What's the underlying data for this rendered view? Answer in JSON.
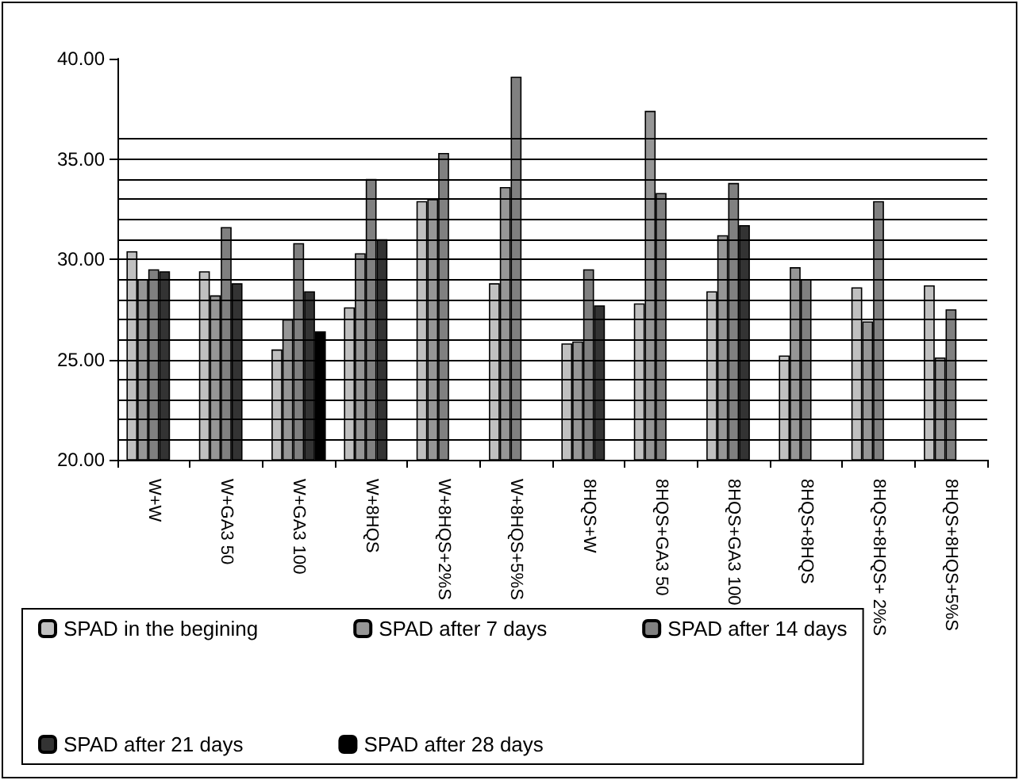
{
  "chart_data": {
    "type": "bar",
    "categories": [
      "W+W",
      "W+GA3 50",
      "W+GA3 100",
      "W+8HQS",
      "W+8HQS+2%S",
      "W+8HQS+5%S",
      "8HQS+W",
      "8HQS+GA3 50",
      "8HQS+GA3 100",
      "8HQS+8HQS",
      "8HQS+8HQS+ 2%S",
      "8HQS+8HQS+5%S"
    ],
    "series": [
      {
        "name": "SPAD in the begining",
        "color": "#c0c0c0",
        "values": [
          30.4,
          29.4,
          25.5,
          27.6,
          32.9,
          28.8,
          25.8,
          27.8,
          28.4,
          25.2,
          28.6,
          28.7
        ]
      },
      {
        "name": "SPAD after 7 days",
        "color": "#969696",
        "values": [
          29.0,
          28.2,
          27.0,
          30.3,
          33.0,
          33.6,
          25.9,
          37.4,
          31.2,
          29.6,
          26.9,
          25.1
        ]
      },
      {
        "name": "SPAD after 14 days",
        "color": "#808080",
        "values": [
          29.5,
          31.6,
          30.8,
          34.0,
          35.3,
          39.1,
          29.5,
          33.3,
          33.8,
          29.0,
          32.9,
          27.5
        ]
      },
      {
        "name": "SPAD after 21 days",
        "color": "#333333",
        "values": [
          29.4,
          28.8,
          28.4,
          31.0,
          null,
          null,
          27.7,
          null,
          31.7,
          null,
          null,
          null
        ]
      },
      {
        "name": "SPAD after 28 days",
        "color": "#000000",
        "values": [
          null,
          null,
          26.4,
          null,
          null,
          null,
          null,
          null,
          null,
          null,
          null,
          null
        ]
      }
    ],
    "ylim": [
      20,
      40
    ],
    "yticks": [
      {
        "value": 20,
        "label": "20.00"
      },
      {
        "value": 21,
        "label": null
      },
      {
        "value": 22,
        "label": null
      },
      {
        "value": 23,
        "label": null
      },
      {
        "value": 24,
        "label": null
      },
      {
        "value": 25,
        "label": "25.00"
      },
      {
        "value": 26,
        "label": null
      },
      {
        "value": 27,
        "label": null
      },
      {
        "value": 28,
        "label": null
      },
      {
        "value": 29,
        "label": null
      },
      {
        "value": 30,
        "label": "30.00"
      },
      {
        "value": 31,
        "label": null
      },
      {
        "value": 32,
        "label": null
      },
      {
        "value": 33,
        "label": null
      },
      {
        "value": 34,
        "label": null
      },
      {
        "value": 35,
        "label": "35.00"
      },
      {
        "value": 36,
        "label": null
      },
      {
        "value": 40,
        "label": "40.00"
      }
    ],
    "grid": "y",
    "legend": "bottom"
  }
}
